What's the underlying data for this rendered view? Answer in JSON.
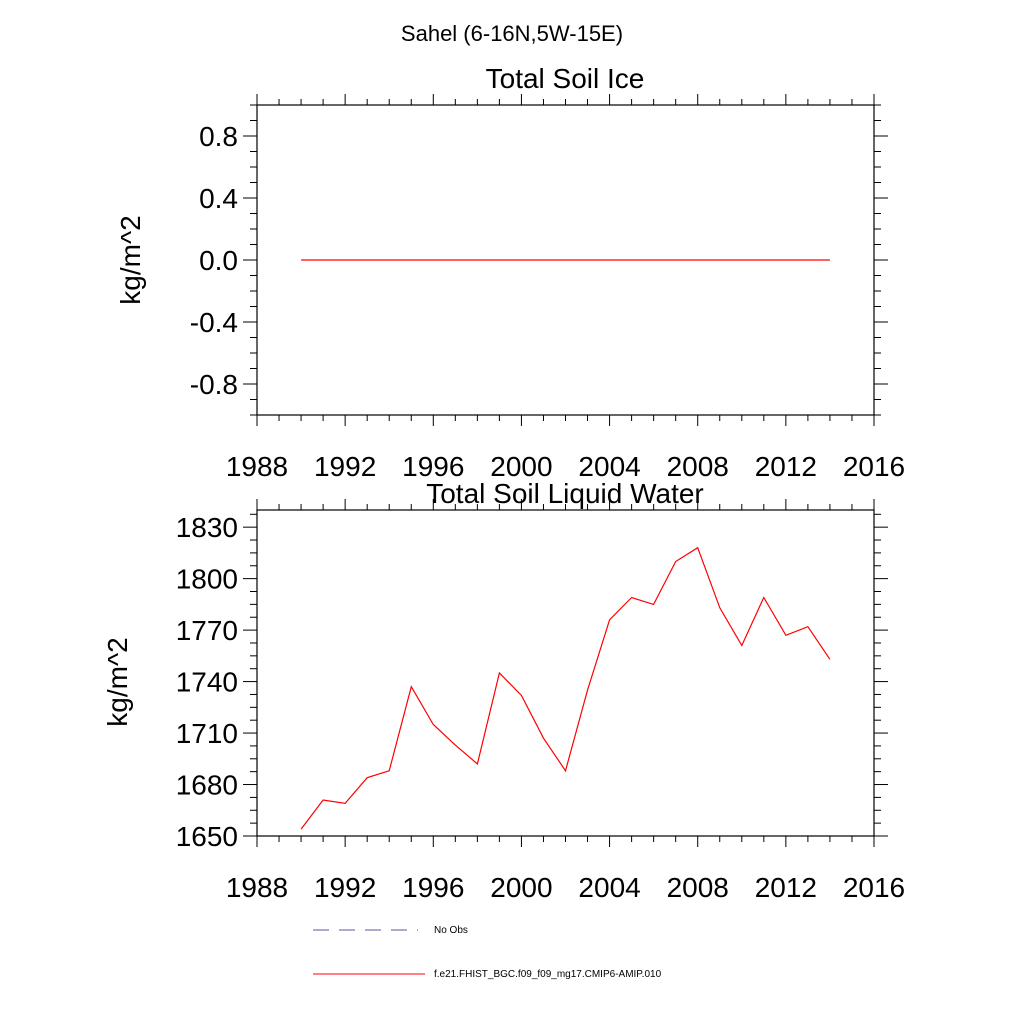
{
  "suptitle": "Sahel (6-16N,5W-15E)",
  "colors": {
    "model": "#ff0000",
    "obs": "#5555aa",
    "axis": "#000000"
  },
  "legend": [
    {
      "label": "No Obs",
      "style": "dashed",
      "color": "#5555aa"
    },
    {
      "label": "f.e21.FHIST_BGC.f09_f09_mg17.CMIP6-AMIP.010",
      "style": "solid",
      "color": "#ff0000"
    }
  ],
  "chart_data": [
    {
      "type": "line",
      "title": "Total Soil Ice",
      "xlabel": "",
      "ylabel": "kg/m^2",
      "xlim": [
        1988,
        2016
      ],
      "ylim": [
        -1.0,
        1.0
      ],
      "xticks": [
        1988,
        1992,
        1996,
        2000,
        2004,
        2008,
        2012,
        2016
      ],
      "yticks": [
        -0.8,
        -0.4,
        0.0,
        0.4,
        0.8
      ],
      "ytick_labels": [
        "-0.8",
        "-0.4",
        "0.0",
        "0.4",
        "0.8"
      ],
      "x": [
        1990,
        1991,
        1992,
        1993,
        1994,
        1995,
        1996,
        1997,
        1998,
        1999,
        2000,
        2001,
        2002,
        2003,
        2004,
        2005,
        2006,
        2007,
        2008,
        2009,
        2010,
        2011,
        2012,
        2013,
        2014
      ],
      "series": [
        {
          "name": "f.e21.FHIST_BGC.f09_f09_mg17.CMIP6-AMIP.010",
          "color": "#ff0000",
          "values": [
            0,
            0,
            0,
            0,
            0,
            0,
            0,
            0,
            0,
            0,
            0,
            0,
            0,
            0,
            0,
            0,
            0,
            0,
            0,
            0,
            0,
            0,
            0,
            0,
            0
          ]
        }
      ],
      "grid": false,
      "legend_position": "below"
    },
    {
      "type": "line",
      "title": "Total Soil Liquid Water",
      "xlabel": "",
      "ylabel": "kg/m^2",
      "xlim": [
        1988,
        2016
      ],
      "ylim": [
        1650,
        1840
      ],
      "xticks": [
        1988,
        1992,
        1996,
        2000,
        2004,
        2008,
        2012,
        2016
      ],
      "yticks": [
        1650,
        1680,
        1710,
        1740,
        1770,
        1800,
        1830
      ],
      "ytick_labels": [
        "1650",
        "1680",
        "1710",
        "1740",
        "1770",
        "1800",
        "1830"
      ],
      "x": [
        1990,
        1991,
        1992,
        1993,
        1994,
        1995,
        1996,
        1997,
        1998,
        1999,
        2000,
        2001,
        2002,
        2003,
        2004,
        2005,
        2006,
        2007,
        2008,
        2009,
        2010,
        2011,
        2012,
        2013,
        2014
      ],
      "series": [
        {
          "name": "f.e21.FHIST_BGC.f09_f09_mg17.CMIP6-AMIP.010",
          "color": "#ff0000",
          "values": [
            1654,
            1671,
            1669,
            1684,
            1688,
            1737,
            1715,
            1703,
            1692,
            1745,
            1732,
            1707,
            1688,
            1735,
            1776,
            1789,
            1785,
            1810,
            1818,
            1783,
            1761,
            1789,
            1767,
            1772,
            1753
          ]
        }
      ],
      "grid": false,
      "legend_position": "below"
    }
  ]
}
